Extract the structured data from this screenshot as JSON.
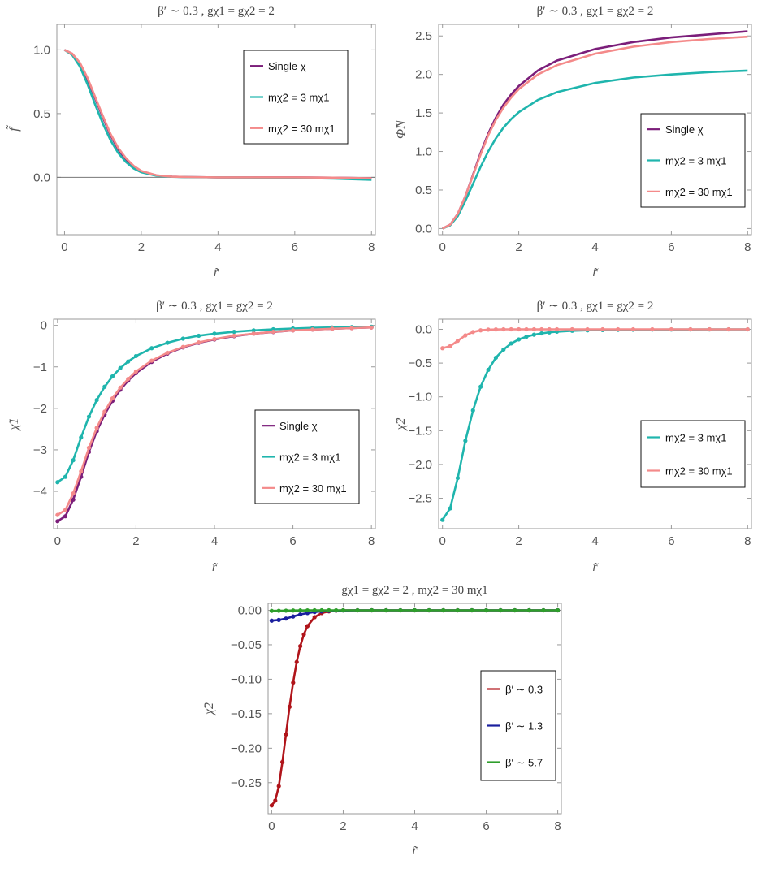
{
  "caption": "",
  "chart_data": [
    {
      "type": "line",
      "title": "β′ ∼ 0.3 ,  gχ1 = gχ2 = 2",
      "xlabel": "r̃",
      "ylabel": "f̃",
      "xlim": [
        -0.2,
        8.1
      ],
      "ylim": [
        -0.45,
        1.2
      ],
      "xticks": [
        0,
        2,
        4,
        6,
        8
      ],
      "yticks": [
        0.0,
        0.5,
        1.0
      ],
      "ytick_labels": [
        "0.0",
        "0.5",
        "1.0"
      ],
      "legend_position": "top-right",
      "zero_line": true,
      "series": [
        {
          "name": "Single χ",
          "color": "#7B1E7A",
          "dots": false,
          "x": [
            0,
            0.2,
            0.4,
            0.6,
            0.8,
            1.0,
            1.2,
            1.4,
            1.6,
            1.8,
            2.0,
            2.4,
            2.8,
            3.2,
            4,
            5,
            6,
            7,
            8
          ],
          "y": [
            1.0,
            0.97,
            0.89,
            0.77,
            0.62,
            0.47,
            0.33,
            0.22,
            0.14,
            0.08,
            0.045,
            0.015,
            0.005,
            0.002,
            0.0,
            0.0,
            0.0,
            -0.003,
            -0.008
          ]
        },
        {
          "name": "mχ2 = 3 mχ1",
          "color": "#1FB5AD",
          "dots": false,
          "x": [
            0,
            0.2,
            0.4,
            0.6,
            0.8,
            1.0,
            1.2,
            1.4,
            1.6,
            1.8,
            2.0,
            2.4,
            2.8,
            3.2,
            4,
            5,
            6,
            7,
            8
          ],
          "y": [
            1.0,
            0.96,
            0.87,
            0.73,
            0.57,
            0.42,
            0.29,
            0.19,
            0.12,
            0.07,
            0.04,
            0.012,
            0.004,
            0.001,
            0.0,
            -0.002,
            -0.005,
            -0.01,
            -0.02
          ]
        },
        {
          "name": "mχ2 = 30 mχ1",
          "color": "#F48A8A",
          "dots": false,
          "x": [
            0,
            0.2,
            0.4,
            0.6,
            0.8,
            1.0,
            1.2,
            1.4,
            1.6,
            1.8,
            2.0,
            2.4,
            2.8,
            3.2,
            4,
            5,
            6,
            7,
            8
          ],
          "y": [
            1.0,
            0.97,
            0.9,
            0.78,
            0.63,
            0.48,
            0.34,
            0.23,
            0.15,
            0.09,
            0.05,
            0.016,
            0.005,
            0.002,
            0.0,
            0.0,
            0.0,
            -0.003,
            -0.007
          ]
        }
      ]
    },
    {
      "type": "line",
      "title": "β′ ∼ 0.3 ,  gχ1 = gχ2 = 2",
      "xlabel": "r̃",
      "ylabel": "Φ̃N",
      "xlim": [
        -0.1,
        8.1
      ],
      "ylim": [
        -0.08,
        2.65
      ],
      "xticks": [
        0,
        2,
        4,
        6,
        8
      ],
      "yticks": [
        0.0,
        0.5,
        1.0,
        1.5,
        2.0,
        2.5
      ],
      "ytick_labels": [
        "0.0",
        "0.5",
        "1.0",
        "1.5",
        "2.0",
        "2.5"
      ],
      "legend_position": "center-right",
      "zero_line": false,
      "series": [
        {
          "name": "Single χ",
          "color": "#7B1E7A",
          "dots": false,
          "x": [
            0,
            0.2,
            0.4,
            0.6,
            0.8,
            1.0,
            1.2,
            1.4,
            1.6,
            1.8,
            2.0,
            2.5,
            3,
            4,
            5,
            6,
            7,
            8
          ],
          "y": [
            0.0,
            0.05,
            0.19,
            0.42,
            0.7,
            0.98,
            1.23,
            1.44,
            1.61,
            1.74,
            1.85,
            2.05,
            2.18,
            2.33,
            2.42,
            2.48,
            2.52,
            2.56
          ]
        },
        {
          "name": "mχ2 = 3 mχ1",
          "color": "#1FB5AD",
          "dots": false,
          "x": [
            0,
            0.2,
            0.4,
            0.6,
            0.8,
            1.0,
            1.2,
            1.4,
            1.6,
            1.8,
            2.0,
            2.5,
            3,
            4,
            5,
            6,
            7,
            8
          ],
          "y": [
            0.0,
            0.04,
            0.16,
            0.36,
            0.58,
            0.8,
            1.0,
            1.17,
            1.31,
            1.42,
            1.51,
            1.67,
            1.77,
            1.89,
            1.96,
            2.0,
            2.03,
            2.05
          ]
        },
        {
          "name": "mχ2 = 30 mχ1",
          "color": "#F48A8A",
          "dots": false,
          "x": [
            0,
            0.2,
            0.4,
            0.6,
            0.8,
            1.0,
            1.2,
            1.4,
            1.6,
            1.8,
            2.0,
            2.5,
            3,
            4,
            5,
            6,
            7,
            8
          ],
          "y": [
            0.0,
            0.05,
            0.19,
            0.42,
            0.69,
            0.96,
            1.21,
            1.41,
            1.57,
            1.7,
            1.81,
            2.0,
            2.12,
            2.27,
            2.36,
            2.42,
            2.46,
            2.49
          ]
        }
      ]
    },
    {
      "type": "line",
      "title": "β′ ∼ 0.3 ,  gχ1 = gχ2 = 2",
      "xlabel": "r̃",
      "ylabel": "χ̃1",
      "xlim": [
        -0.1,
        8.1
      ],
      "ylim": [
        -4.9,
        0.15
      ],
      "xticks": [
        0,
        2,
        4,
        6,
        8
      ],
      "yticks": [
        0,
        -1,
        -2,
        -3,
        -4
      ],
      "ytick_labels": [
        "0",
        "−1",
        "−2",
        "−3",
        "−4"
      ],
      "legend_position": "lower-right",
      "zero_line": false,
      "series": [
        {
          "name": "Single χ",
          "color": "#7B1E7A",
          "dots": true,
          "x": [
            0,
            0.2,
            0.4,
            0.6,
            0.8,
            1.0,
            1.2,
            1.4,
            1.6,
            1.8,
            2.0,
            2.4,
            2.8,
            3.2,
            3.6,
            4,
            4.5,
            5,
            5.5,
            6,
            6.5,
            7,
            7.5,
            8
          ],
          "y": [
            -4.72,
            -4.6,
            -4.2,
            -3.65,
            -3.05,
            -2.55,
            -2.15,
            -1.82,
            -1.55,
            -1.33,
            -1.15,
            -0.88,
            -0.68,
            -0.53,
            -0.42,
            -0.34,
            -0.26,
            -0.2,
            -0.16,
            -0.12,
            -0.1,
            -0.08,
            -0.065,
            -0.05
          ]
        },
        {
          "name": "mχ2 = 3 mχ1",
          "color": "#1FB5AD",
          "dots": true,
          "x": [
            0,
            0.2,
            0.4,
            0.6,
            0.8,
            1.0,
            1.2,
            1.4,
            1.6,
            1.8,
            2.0,
            2.4,
            2.8,
            3.2,
            3.6,
            4,
            4.5,
            5,
            5.5,
            6,
            6.5,
            7,
            7.5,
            8
          ],
          "y": [
            -3.78,
            -3.65,
            -3.25,
            -2.7,
            -2.2,
            -1.8,
            -1.48,
            -1.23,
            -1.03,
            -0.87,
            -0.74,
            -0.55,
            -0.42,
            -0.32,
            -0.25,
            -0.2,
            -0.155,
            -0.12,
            -0.095,
            -0.075,
            -0.06,
            -0.05,
            -0.04,
            -0.033
          ]
        },
        {
          "name": "mχ2 = 30 mχ1",
          "color": "#F48A8A",
          "dots": true,
          "x": [
            0,
            0.2,
            0.4,
            0.6,
            0.8,
            1.0,
            1.2,
            1.4,
            1.6,
            1.8,
            2.0,
            2.4,
            2.8,
            3.2,
            3.6,
            4,
            4.5,
            5,
            5.5,
            6,
            6.5,
            7,
            7.5,
            8
          ],
          "y": [
            -4.57,
            -4.45,
            -4.05,
            -3.52,
            -2.95,
            -2.47,
            -2.08,
            -1.76,
            -1.5,
            -1.29,
            -1.11,
            -0.85,
            -0.66,
            -0.52,
            -0.41,
            -0.33,
            -0.25,
            -0.2,
            -0.155,
            -0.12,
            -0.1,
            -0.08,
            -0.065,
            -0.05
          ]
        }
      ]
    },
    {
      "type": "line",
      "title": "β′ ∼ 0.3 ,  gχ1 = gχ2 = 2",
      "xlabel": "r̃",
      "ylabel": "χ̃2",
      "xlim": [
        -0.1,
        8.1
      ],
      "ylim": [
        -2.95,
        0.15
      ],
      "xticks": [
        0,
        2,
        4,
        6,
        8
      ],
      "yticks": [
        0.0,
        -0.5,
        -1.0,
        -1.5,
        -2.0,
        -2.5
      ],
      "ytick_labels": [
        "0.0",
        "−0.5",
        "−1.0",
        "−1.5",
        "−2.0",
        "−2.5"
      ],
      "legend_position": "lower-right",
      "zero_line": false,
      "series": [
        {
          "name": "mχ2 = 3 mχ1",
          "color": "#1FB5AD",
          "dots": true,
          "x": [
            0,
            0.2,
            0.4,
            0.6,
            0.8,
            1.0,
            1.2,
            1.4,
            1.6,
            1.8,
            2.0,
            2.2,
            2.4,
            2.6,
            2.8,
            3.0,
            3.4,
            3.8,
            4.2,
            4.6,
            5,
            5.5,
            6,
            6.5,
            7,
            7.5,
            8
          ],
          "y": [
            -2.82,
            -2.65,
            -2.2,
            -1.65,
            -1.2,
            -0.85,
            -0.6,
            -0.42,
            -0.3,
            -0.21,
            -0.15,
            -0.11,
            -0.08,
            -0.06,
            -0.045,
            -0.035,
            -0.022,
            -0.015,
            -0.011,
            -0.008,
            -0.006,
            -0.004,
            -0.003,
            -0.002,
            -0.0015,
            -0.001,
            -0.001
          ]
        },
        {
          "name": "mχ2 = 30 mχ1",
          "color": "#F48A8A",
          "dots": true,
          "x": [
            0,
            0.2,
            0.4,
            0.6,
            0.8,
            1.0,
            1.2,
            1.4,
            1.6,
            1.8,
            2.0,
            2.2,
            2.4,
            2.6,
            2.8,
            3.0,
            3.4,
            3.8,
            4.2,
            4.6,
            5,
            5.5,
            6,
            6.5,
            7,
            7.5,
            8
          ],
          "y": [
            -0.28,
            -0.25,
            -0.17,
            -0.09,
            -0.04,
            -0.015,
            -0.005,
            -0.002,
            0.0,
            0.0,
            0.0,
            0.0,
            0.0,
            0.0,
            0.0,
            0.0,
            0.0,
            0.0,
            0.0,
            0.0,
            0.0,
            0.0,
            0.0,
            0.0,
            0.0,
            0.0,
            0.0
          ]
        }
      ]
    },
    {
      "type": "line",
      "title": "gχ1 = gχ2 = 2 ,  mχ2 = 30 mχ1",
      "xlabel": "r̃",
      "ylabel": "χ̃2",
      "xlim": [
        -0.1,
        8.1
      ],
      "ylim": [
        -0.295,
        0.01
      ],
      "xticks": [
        0,
        2,
        4,
        6,
        8
      ],
      "yticks": [
        0.0,
        -0.05,
        -0.1,
        -0.15,
        -0.2,
        -0.25
      ],
      "ytick_labels": [
        "0.00",
        "−0.05",
        "−0.10",
        "−0.15",
        "−0.20",
        "−0.25"
      ],
      "legend_position": "center-right",
      "zero_line": false,
      "series": [
        {
          "name": "β′ ∼ 0.3",
          "color": "#B0141A",
          "dots": true,
          "x": [
            0,
            0.1,
            0.2,
            0.3,
            0.4,
            0.5,
            0.6,
            0.7,
            0.8,
            0.9,
            1.0,
            1.2,
            1.4,
            1.6,
            1.8,
            2.0,
            2.4,
            2.8,
            3.2,
            3.6,
            4,
            4.4,
            4.8,
            5.2,
            5.6,
            6,
            6.4,
            6.8,
            7.2,
            7.6,
            8
          ],
          "y": [
            -0.283,
            -0.276,
            -0.255,
            -0.22,
            -0.18,
            -0.14,
            -0.105,
            -0.075,
            -0.052,
            -0.035,
            -0.023,
            -0.01,
            -0.004,
            -0.0015,
            -0.0005,
            0.0,
            0.0,
            0.0,
            0.0,
            0.0,
            0.0,
            0.0,
            0.0,
            0.0,
            0.0,
            0.0,
            0.0,
            0.0,
            0.0,
            0.0,
            0.0
          ]
        },
        {
          "name": "β′ ∼ 1.3",
          "color": "#1A1F9E",
          "dots": true,
          "x": [
            0,
            0.2,
            0.4,
            0.6,
            0.8,
            1.0,
            1.2,
            1.4,
            1.6,
            1.8,
            2.0,
            2.4,
            2.8,
            3.2,
            3.6,
            4,
            4.4,
            4.8,
            5.2,
            5.6,
            6,
            6.4,
            6.8,
            7.2,
            7.6,
            8
          ],
          "y": [
            -0.015,
            -0.014,
            -0.012,
            -0.009,
            -0.006,
            -0.004,
            -0.0025,
            -0.0015,
            -0.0008,
            -0.0004,
            -0.0002,
            0.0,
            0.0,
            0.0,
            0.0,
            0.0,
            0.0,
            0.0,
            0.0,
            0.0,
            0.0,
            0.0,
            0.0,
            0.0,
            0.0,
            0.0
          ]
        },
        {
          "name": "β′ ∼ 5.7",
          "color": "#2E9E2B",
          "dots": true,
          "x": [
            0,
            0.2,
            0.4,
            0.6,
            0.8,
            1.0,
            1.2,
            1.4,
            1.6,
            1.8,
            2.0,
            2.4,
            2.8,
            3.2,
            3.6,
            4,
            4.4,
            4.8,
            5.2,
            5.6,
            6,
            6.4,
            6.8,
            7.2,
            7.6,
            8
          ],
          "y": [
            -0.0008,
            -0.0007,
            -0.0005,
            -0.0003,
            -0.0002,
            -0.0001,
            0.0,
            0.0,
            0.0,
            0.0,
            0.0,
            0.0,
            0.0,
            0.0,
            0.0,
            0.0,
            0.0,
            0.0,
            0.0,
            0.0,
            0.0,
            0.0,
            0.0,
            0.0,
            0.0,
            0.0
          ]
        }
      ]
    }
  ]
}
